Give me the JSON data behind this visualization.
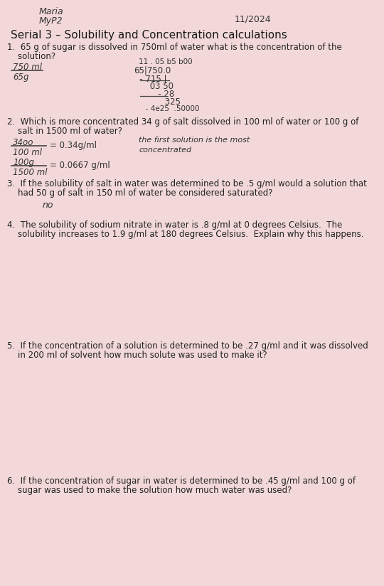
{
  "bg_color": "#d4b0b0",
  "paper_color": "#f2d8d8",
  "name_line1": "Maria",
  "name_line2": "MyP2",
  "date": "11/2024",
  "title": "Serial 3 – Solubility and Concentration calculations",
  "q1_text1": "1.  65 g of sugar is dissolved in 750ml of water what is the concentration of the",
  "q1_text2": "    solution?",
  "q1_left1": "750 ml",
  "q1_left2": "65g",
  "q1_right0": "11 . 05 b5 b00",
  "q1_right1": "65|750.0",
  "q1_right2": "   - 715 |",
  "q1_right3": "     03 50",
  "q1_right4": "       - 28",
  "q1_right5": "         325",
  "q1_right6": "       - 4e25  .50000",
  "q2_text1": "2.  Which is more concentrated 34 g of salt dissolved in 100 ml of water or 100 g of",
  "q2_text2": "    salt in 1500 ml of water?",
  "q2_frac1_num": "34oo",
  "q2_frac1_den": "100 ml",
  "q2_eq1": "= 0.34g/ml",
  "q2_note1": "the first solution is the most",
  "q2_note2": "concentrated",
  "q2_frac2_num": "100g",
  "q2_frac2_den": "1500 ml",
  "q2_eq2": "= 0.0667 g/ml",
  "q3_text1": "3.  If the solubility of salt in water was determined to be .5 g/ml would a solution that",
  "q3_text2": "    had 50 g of salt in 150 ml of water be considered saturated?",
  "q3_answer": "no",
  "q4_text1": "4.  The solubility of sodium nitrate in water is .8 g/ml at 0 degrees Celsius.  The",
  "q4_text2": "    solubility increases to 1.9 g/ml at 180 degrees Celsius.  Explain why this happens.",
  "q5_text1": "5.  If the concentration of a solution is determined to be .27 g/ml and it was dissolved",
  "q5_text2": "    in 200 ml of solvent how much solute was used to make it?",
  "q6_text1": "6.  If the concentration of sugar in water is determined to be .45 g/ml and 100 g of",
  "q6_text2": "    sugar was used to make the solution how much water was used?",
  "text_color": "#2a1a1a",
  "handwriting_color": "#333333",
  "line_color": "#444444"
}
